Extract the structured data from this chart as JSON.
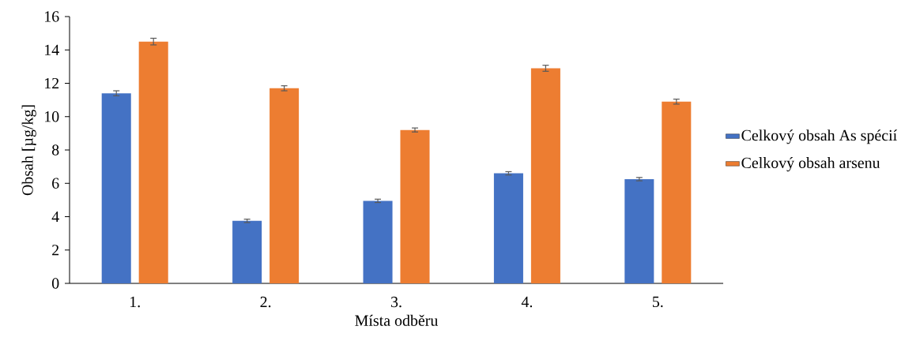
{
  "chart_data": {
    "type": "bar",
    "categories": [
      "1.",
      "2.",
      "3.",
      "4.",
      "5."
    ],
    "xlabel": "Místa odběru",
    "ylabel": "Obsah [µg/kg]",
    "ylim": [
      0,
      16
    ],
    "yticks": [
      0,
      2,
      4,
      6,
      8,
      10,
      12,
      14,
      16
    ],
    "legend": "right",
    "grid": false,
    "series": [
      {
        "name": "Celkový obsah As spécií",
        "color": "#4472c4",
        "values": [
          11.4,
          3.75,
          4.95,
          6.6,
          6.25
        ],
        "errors": [
          0.15,
          0.1,
          0.1,
          0.1,
          0.1
        ]
      },
      {
        "name": "Celkový obsah arsenu",
        "color": "#ed7d31",
        "values": [
          14.5,
          11.7,
          9.2,
          12.9,
          10.9
        ],
        "errors": [
          0.2,
          0.15,
          0.12,
          0.18,
          0.15
        ]
      }
    ]
  }
}
